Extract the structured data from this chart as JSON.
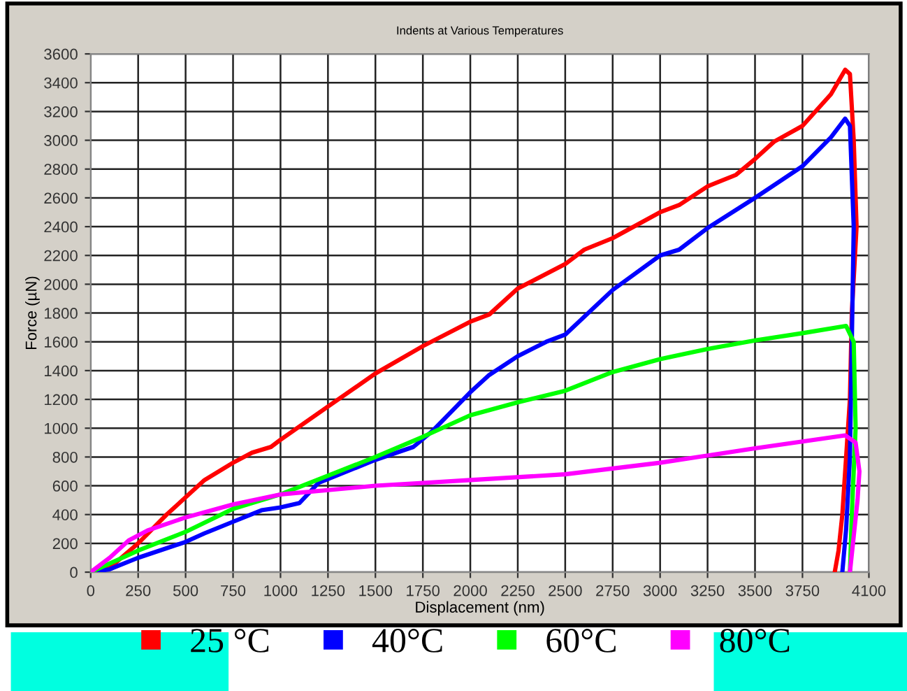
{
  "chart_data": {
    "type": "line",
    "title": "Indents at Various Temperatures",
    "xlabel": "Displacement (nm)",
    "ylabel": "Force (µN)",
    "xlim": [
      0,
      4100
    ],
    "ylim": [
      0,
      3600
    ],
    "xticks": [
      0,
      250,
      500,
      750,
      1000,
      1250,
      1500,
      1750,
      2000,
      2250,
      2500,
      2750,
      3000,
      3250,
      3500,
      3750,
      4100
    ],
    "yticks": [
      0,
      200,
      400,
      600,
      800,
      1000,
      1200,
      1400,
      1600,
      1800,
      2000,
      2200,
      2400,
      2600,
      2800,
      3000,
      3200,
      3400,
      3600
    ],
    "grid": true,
    "legend": "bottom",
    "marker": "none",
    "line_style": "solid",
    "series": [
      {
        "name": "25 °C",
        "color": "#ff0000",
        "x": [
          0,
          100,
          250,
          400,
          500,
          600,
          750,
          850,
          950,
          1000,
          1250,
          1500,
          1750,
          2000,
          2100,
          2250,
          2500,
          2600,
          2750,
          3000,
          3100,
          3250,
          3400,
          3500,
          3600,
          3750,
          3900,
          3975,
          4000,
          4020,
          4035,
          4010,
          4000,
          3980,
          3960,
          3940,
          3920
        ],
        "values": [
          0,
          30,
          200,
          400,
          520,
          640,
          760,
          830,
          870,
          920,
          1150,
          1380,
          1570,
          1740,
          1790,
          1970,
          2140,
          2240,
          2320,
          2500,
          2550,
          2680,
          2760,
          2870,
          2990,
          3100,
          3320,
          3490,
          3460,
          3000,
          2400,
          1800,
          1200,
          800,
          400,
          150,
          0
        ]
      },
      {
        "name": "40°C",
        "color": "#0000ff",
        "x": [
          0,
          100,
          250,
          500,
          600,
          750,
          900,
          1000,
          1100,
          1200,
          1500,
          1700,
          1800,
          2000,
          2100,
          2250,
          2400,
          2500,
          2750,
          3000,
          3100,
          3250,
          3500,
          3750,
          3900,
          3975,
          4000,
          4020,
          4010,
          4000,
          3980,
          3960
        ],
        "values": [
          0,
          20,
          100,
          210,
          270,
          350,
          430,
          450,
          480,
          620,
          780,
          870,
          980,
          1250,
          1370,
          1500,
          1600,
          1650,
          1960,
          2200,
          2240,
          2390,
          2600,
          2820,
          3020,
          3150,
          3100,
          2400,
          1600,
          800,
          300,
          0
        ]
      },
      {
        "name": "60°C",
        "color": "#00ff00",
        "x": [
          0,
          250,
          500,
          750,
          1000,
          1250,
          1500,
          1750,
          2000,
          2250,
          2500,
          2750,
          3000,
          3250,
          3500,
          3750,
          3980,
          4020,
          4030,
          4010,
          4000
        ],
        "values": [
          0,
          150,
          280,
          440,
          540,
          670,
          800,
          940,
          1090,
          1180,
          1260,
          1390,
          1480,
          1550,
          1610,
          1660,
          1710,
          1600,
          1000,
          400,
          0
        ]
      },
      {
        "name": "80°C",
        "color": "#ff00ff",
        "x": [
          0,
          100,
          200,
          300,
          500,
          750,
          1000,
          1250,
          1500,
          1750,
          2000,
          2500,
          3000,
          3500,
          3975,
          4030,
          4050,
          4040,
          4020,
          4000
        ],
        "values": [
          0,
          100,
          220,
          290,
          380,
          470,
          540,
          570,
          600,
          620,
          640,
          680,
          760,
          860,
          950,
          900,
          700,
          500,
          250,
          0
        ]
      }
    ]
  }
}
